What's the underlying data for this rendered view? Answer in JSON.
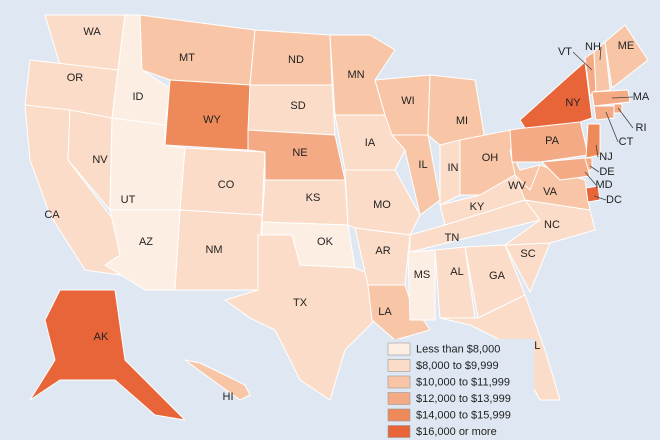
{
  "legend": {
    "items": [
      {
        "label": "Less than $8,000",
        "color": "#fdeee4"
      },
      {
        "label": "$8,000 to $9,999",
        "color": "#fbdcc8"
      },
      {
        "label": "$10,000 to $11,999",
        "color": "#f8c6a6"
      },
      {
        "label": "$12,000 to $13,999",
        "color": "#f4aa84"
      },
      {
        "label": "$14,000 to $15,999",
        "color": "#ee8a5a"
      },
      {
        "label": "$16,000 or more",
        "color": "#e8653a"
      }
    ]
  },
  "states": [
    {
      "abbr": "WA",
      "bin": 1
    },
    {
      "abbr": "OR",
      "bin": 1
    },
    {
      "abbr": "CA",
      "bin": 1
    },
    {
      "abbr": "NV",
      "bin": 1
    },
    {
      "abbr": "ID",
      "bin": 0
    },
    {
      "abbr": "UT",
      "bin": 0
    },
    {
      "abbr": "AZ",
      "bin": 0
    },
    {
      "abbr": "MT",
      "bin": 2
    },
    {
      "abbr": "WY",
      "bin": 4
    },
    {
      "abbr": "CO",
      "bin": 1
    },
    {
      "abbr": "NM",
      "bin": 1
    },
    {
      "abbr": "ND",
      "bin": 2
    },
    {
      "abbr": "SD",
      "bin": 1
    },
    {
      "abbr": "NE",
      "bin": 3
    },
    {
      "abbr": "KS",
      "bin": 1
    },
    {
      "abbr": "OK",
      "bin": 0
    },
    {
      "abbr": "TX",
      "bin": 1
    },
    {
      "abbr": "MN",
      "bin": 2
    },
    {
      "abbr": "IA",
      "bin": 1
    },
    {
      "abbr": "MO",
      "bin": 1
    },
    {
      "abbr": "AR",
      "bin": 1
    },
    {
      "abbr": "LA",
      "bin": 2
    },
    {
      "abbr": "WI",
      "bin": 2
    },
    {
      "abbr": "IL",
      "bin": 2
    },
    {
      "abbr": "MI",
      "bin": 2
    },
    {
      "abbr": "IN",
      "bin": 1
    },
    {
      "abbr": "OH",
      "bin": 2
    },
    {
      "abbr": "KY",
      "bin": 1
    },
    {
      "abbr": "TN",
      "bin": 1
    },
    {
      "abbr": "MS",
      "bin": 0
    },
    {
      "abbr": "AL",
      "bin": 1
    },
    {
      "abbr": "GA",
      "bin": 1
    },
    {
      "abbr": "FL",
      "bin": 1
    },
    {
      "abbr": "SC",
      "bin": 1
    },
    {
      "abbr": "NC",
      "bin": 1
    },
    {
      "abbr": "VA",
      "bin": 2
    },
    {
      "abbr": "WV",
      "bin": 2
    },
    {
      "abbr": "PA",
      "bin": 3
    },
    {
      "abbr": "NY",
      "bin": 5
    },
    {
      "abbr": "VT",
      "bin": 3
    },
    {
      "abbr": "NH",
      "bin": 2
    },
    {
      "abbr": "ME",
      "bin": 2
    },
    {
      "abbr": "MA",
      "bin": 3
    },
    {
      "abbr": "RI",
      "bin": 3
    },
    {
      "abbr": "CT",
      "bin": 3
    },
    {
      "abbr": "NJ",
      "bin": 4
    },
    {
      "abbr": "DE",
      "bin": 3
    },
    {
      "abbr": "MD",
      "bin": 3
    },
    {
      "abbr": "DC",
      "bin": 5
    },
    {
      "abbr": "AK",
      "bin": 5
    },
    {
      "abbr": "HI",
      "bin": 2
    }
  ]
}
